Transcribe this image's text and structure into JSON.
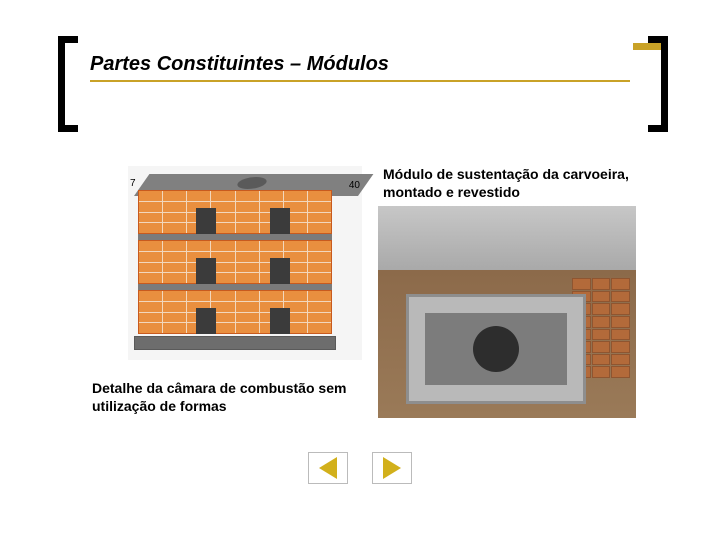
{
  "colors": {
    "accent": "#c9a227",
    "underline": "#c9a227",
    "brick": "#e98f3f",
    "brick_mortar": "#f2d7bd",
    "nav_arrow": "#d2b01b",
    "text": "#000000",
    "background": "#ffffff"
  },
  "title": "Partes Constituintes – Módulos",
  "captions": {
    "right": "Módulo de sustentação da carvoeira, montado e revestido",
    "left": "Detalhe da câmara de combustão sem utilização de formas"
  },
  "diagram": {
    "dim_left": "7",
    "dim_right": "40"
  },
  "nav": {
    "prev_label": "previous",
    "next_label": "next"
  }
}
